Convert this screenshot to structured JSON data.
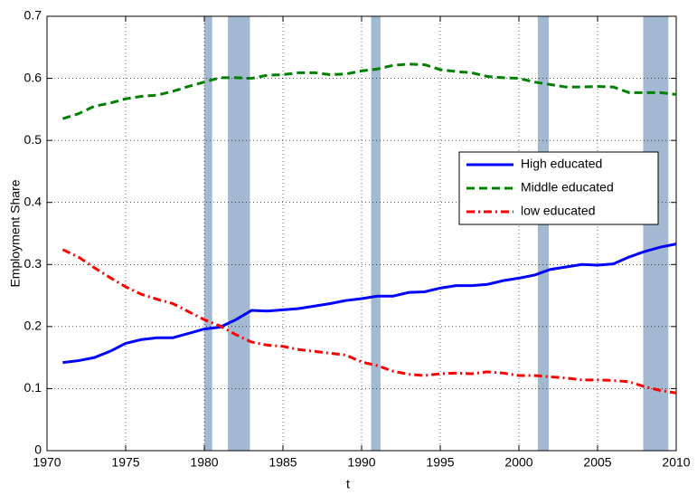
{
  "chart_data": {
    "type": "line",
    "xlabel": "t",
    "ylabel": "Employment Share",
    "x": [
      1971,
      1972,
      1973,
      1974,
      1975,
      1976,
      1977,
      1978,
      1979,
      1980,
      1981,
      1982,
      1983,
      1984,
      1985,
      1986,
      1987,
      1988,
      1989,
      1990,
      1991,
      1992,
      1993,
      1994,
      1995,
      1996,
      1997,
      1998,
      1999,
      2000,
      2001,
      2002,
      2003,
      2004,
      2005,
      2006,
      2007,
      2008,
      2009,
      2010
    ],
    "series": [
      {
        "name": "High educated",
        "color": "#0000ff",
        "dash": "solid",
        "values": [
          0.142,
          0.145,
          0.15,
          0.16,
          0.173,
          0.179,
          0.182,
          0.182,
          0.189,
          0.196,
          0.199,
          0.211,
          0.226,
          0.225,
          0.227,
          0.229,
          0.233,
          0.237,
          0.242,
          0.245,
          0.249,
          0.249,
          0.255,
          0.256,
          0.262,
          0.266,
          0.266,
          0.268,
          0.274,
          0.278,
          0.283,
          0.292,
          0.296,
          0.3,
          0.299,
          0.301,
          0.312,
          0.321,
          0.328,
          0.333
        ]
      },
      {
        "name": "Middle educated",
        "color": "#008000",
        "dash": "dashed",
        "values": [
          0.535,
          0.543,
          0.555,
          0.56,
          0.567,
          0.571,
          0.573,
          0.579,
          0.587,
          0.594,
          0.601,
          0.601,
          0.6,
          0.605,
          0.606,
          0.609,
          0.609,
          0.606,
          0.607,
          0.612,
          0.615,
          0.621,
          0.623,
          0.622,
          0.614,
          0.611,
          0.609,
          0.603,
          0.601,
          0.6,
          0.594,
          0.59,
          0.586,
          0.586,
          0.587,
          0.586,
          0.577,
          0.577,
          0.577,
          0.574
        ]
      },
      {
        "name": "low educated",
        "color": "#ff0000",
        "dash": "dashdot",
        "values": [
          0.324,
          0.312,
          0.295,
          0.279,
          0.264,
          0.252,
          0.244,
          0.237,
          0.224,
          0.211,
          0.201,
          0.187,
          0.175,
          0.17,
          0.168,
          0.163,
          0.16,
          0.157,
          0.154,
          0.143,
          0.137,
          0.128,
          0.123,
          0.121,
          0.124,
          0.125,
          0.124,
          0.127,
          0.125,
          0.121,
          0.121,
          0.119,
          0.117,
          0.114,
          0.114,
          0.113,
          0.111,
          0.103,
          0.097,
          0.093
        ]
      }
    ],
    "shaded_periods": [
      [
        1980.0,
        1980.5
      ],
      [
        1981.5,
        1982.9
      ],
      [
        1990.6,
        1991.2
      ],
      [
        2001.2,
        2001.9
      ],
      [
        2007.9,
        2009.5
      ]
    ],
    "shade_color": "#a3b8d1",
    "xlim": [
      1970,
      2010
    ],
    "xticks": [
      1970,
      1975,
      1980,
      1985,
      1990,
      1995,
      2000,
      2005,
      2010
    ],
    "ylim": [
      0,
      0.7
    ],
    "yticks": [
      0,
      0.1,
      0.2,
      0.3,
      0.4,
      0.5,
      0.6,
      0.7
    ],
    "grid": true,
    "legend_position": "center right"
  }
}
